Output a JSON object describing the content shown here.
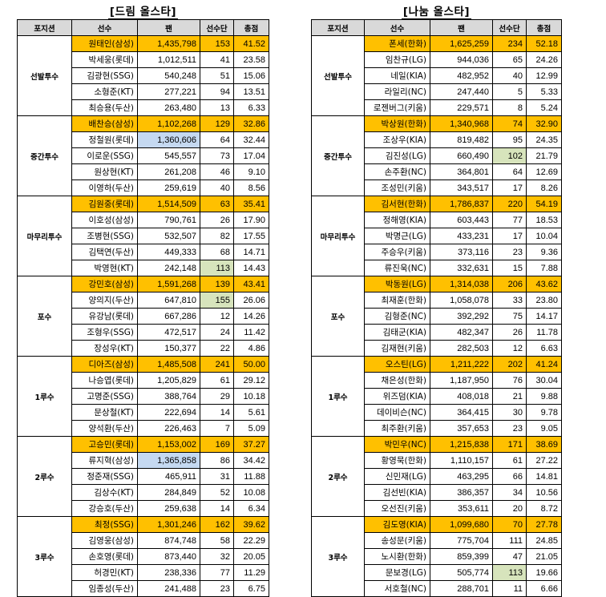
{
  "headers": [
    "포지션",
    "선수",
    "팬",
    "선수단",
    "총점"
  ],
  "tables": [
    {
      "title": "[드림 올스타]",
      "groups": [
        {
          "position": "선발투수",
          "rows": [
            {
              "name": "원태인(삼성)",
              "fan": "1,435,798",
              "players": "153",
              "total": "41.52",
              "top": true
            },
            {
              "name": "박세웅(롯데)",
              "fan": "1,012,511",
              "players": "41",
              "total": "23.58"
            },
            {
              "name": "김광현(SSG)",
              "fan": "540,248",
              "players": "51",
              "total": "15.06"
            },
            {
              "name": "소형준(KT)",
              "fan": "277,221",
              "players": "94",
              "total": "13.51"
            },
            {
              "name": "최승용(두산)",
              "fan": "263,480",
              "players": "13",
              "total": "6.33"
            }
          ]
        },
        {
          "position": "중간투수",
          "rows": [
            {
              "name": "배찬승(삼성)",
              "fan": "1,102,268",
              "players": "129",
              "total": "32.86",
              "top": true
            },
            {
              "name": "정철원(롯데)",
              "fan": "1,360,606",
              "players": "64",
              "total": "32.44",
              "hl": "fan"
            },
            {
              "name": "이로운(SSG)",
              "fan": "545,557",
              "players": "73",
              "total": "17.04"
            },
            {
              "name": "원상현(KT)",
              "fan": "261,208",
              "players": "46",
              "total": "9.10"
            },
            {
              "name": "이영하(두산)",
              "fan": "259,619",
              "players": "40",
              "total": "8.56"
            }
          ]
        },
        {
          "position": "마무리투수",
          "rows": [
            {
              "name": "김원중(롯데)",
              "fan": "1,514,509",
              "players": "63",
              "total": "35.41",
              "top": true
            },
            {
              "name": "이호성(삼성)",
              "fan": "790,761",
              "players": "26",
              "total": "17.90"
            },
            {
              "name": "조병현(SSG)",
              "fan": "532,507",
              "players": "82",
              "total": "17.55"
            },
            {
              "name": "김택연(두산)",
              "fan": "449,333",
              "players": "68",
              "total": "14.71"
            },
            {
              "name": "박영현(KT)",
              "fan": "242,148",
              "players": "113",
              "total": "14.43",
              "hl": "players"
            }
          ]
        },
        {
          "position": "포수",
          "rows": [
            {
              "name": "강민호(삼성)",
              "fan": "1,591,268",
              "players": "139",
              "total": "43.41",
              "top": true
            },
            {
              "name": "양의지(두산)",
              "fan": "647,810",
              "players": "155",
              "total": "26.06",
              "hl": "players"
            },
            {
              "name": "유강남(롯데)",
              "fan": "667,286",
              "players": "12",
              "total": "14.26"
            },
            {
              "name": "조형우(SSG)",
              "fan": "472,517",
              "players": "24",
              "total": "11.42"
            },
            {
              "name": "장성우(KT)",
              "fan": "150,377",
              "players": "22",
              "total": "4.86"
            }
          ]
        },
        {
          "position": "1루수",
          "rows": [
            {
              "name": "디아즈(삼성)",
              "fan": "1,485,508",
              "players": "241",
              "total": "50.00",
              "top": true
            },
            {
              "name": "나승엽(롯데)",
              "fan": "1,205,829",
              "players": "61",
              "total": "29.12"
            },
            {
              "name": "고명준(SSG)",
              "fan": "388,764",
              "players": "29",
              "total": "10.18"
            },
            {
              "name": "문상철(KT)",
              "fan": "222,694",
              "players": "14",
              "total": "5.61"
            },
            {
              "name": "양석환(두산)",
              "fan": "226,463",
              "players": "7",
              "total": "5.09"
            }
          ]
        },
        {
          "position": "2루수",
          "rows": [
            {
              "name": "고승민(롯데)",
              "fan": "1,153,002",
              "players": "169",
              "total": "37.27",
              "top": true
            },
            {
              "name": "류지혁(삼성)",
              "fan": "1,365,858",
              "players": "86",
              "total": "34.42",
              "hl": "fan"
            },
            {
              "name": "정준재(SSG)",
              "fan": "465,911",
              "players": "31",
              "total": "11.88"
            },
            {
              "name": "김상수(KT)",
              "fan": "284,849",
              "players": "52",
              "total": "10.08"
            },
            {
              "name": "강승호(두산)",
              "fan": "259,638",
              "players": "14",
              "total": "6.34"
            }
          ]
        },
        {
          "position": "3루수",
          "rows": [
            {
              "name": "최정(SSG)",
              "fan": "1,301,246",
              "players": "162",
              "total": "39.62",
              "top": true
            },
            {
              "name": "김영웅(삼성)",
              "fan": "874,748",
              "players": "58",
              "total": "22.29"
            },
            {
              "name": "손호영(롯데)",
              "fan": "873,440",
              "players": "32",
              "total": "20.05"
            },
            {
              "name": "허경민(KT)",
              "fan": "238,336",
              "players": "77",
              "total": "11.29"
            },
            {
              "name": "임종성(두산)",
              "fan": "241,488",
              "players": "23",
              "total": "6.75"
            }
          ]
        }
      ]
    },
    {
      "title": "[나눔 올스타]",
      "groups": [
        {
          "position": "선발투수",
          "rows": [
            {
              "name": "폰세(한화)",
              "fan": "1,625,259",
              "players": "234",
              "total": "52.18",
              "top": true
            },
            {
              "name": "임찬규(LG)",
              "fan": "944,036",
              "players": "65",
              "total": "24.26"
            },
            {
              "name": "네일(KIA)",
              "fan": "482,952",
              "players": "40",
              "total": "12.99"
            },
            {
              "name": "라일리(NC)",
              "fan": "247,440",
              "players": "5",
              "total": "5.33"
            },
            {
              "name": "로젠버그(키움)",
              "fan": "229,571",
              "players": "8",
              "total": "5.24"
            }
          ]
        },
        {
          "position": "중간투수",
          "rows": [
            {
              "name": "박상원(한화)",
              "fan": "1,340,968",
              "players": "74",
              "total": "32.90",
              "top": true
            },
            {
              "name": "조상우(KIA)",
              "fan": "819,482",
              "players": "95",
              "total": "24.35"
            },
            {
              "name": "김진성(LG)",
              "fan": "660,490",
              "players": "102",
              "total": "21.79",
              "hl": "players"
            },
            {
              "name": "손주환(NC)",
              "fan": "364,801",
              "players": "64",
              "total": "12.69"
            },
            {
              "name": "조성민(키움)",
              "fan": "343,517",
              "players": "17",
              "total": "8.26"
            }
          ]
        },
        {
          "position": "마무리투수",
          "rows": [
            {
              "name": "김서현(한화)",
              "fan": "1,786,837",
              "players": "220",
              "total": "54.19",
              "top": true
            },
            {
              "name": "정해영(KIA)",
              "fan": "603,443",
              "players": "77",
              "total": "18.53"
            },
            {
              "name": "박명근(LG)",
              "fan": "433,231",
              "players": "17",
              "total": "10.04"
            },
            {
              "name": "주승우(키움)",
              "fan": "373,116",
              "players": "23",
              "total": "9.36"
            },
            {
              "name": "류진욱(NC)",
              "fan": "332,631",
              "players": "15",
              "total": "7.88"
            }
          ]
        },
        {
          "position": "포수",
          "rows": [
            {
              "name": "박동원(LG)",
              "fan": "1,314,038",
              "players": "206",
              "total": "43.62",
              "top": true
            },
            {
              "name": "최재훈(한화)",
              "fan": "1,058,078",
              "players": "33",
              "total": "23.80"
            },
            {
              "name": "김형준(NC)",
              "fan": "392,292",
              "players": "75",
              "total": "14.17"
            },
            {
              "name": "김태군(KIA)",
              "fan": "482,347",
              "players": "26",
              "total": "11.78"
            },
            {
              "name": "김재현(키움)",
              "fan": "282,503",
              "players": "12",
              "total": "6.63"
            }
          ]
        },
        {
          "position": "1루수",
          "rows": [
            {
              "name": "오스틴(LG)",
              "fan": "1,211,222",
              "players": "202",
              "total": "41.24",
              "top": true
            },
            {
              "name": "채은성(한화)",
              "fan": "1,187,950",
              "players": "76",
              "total": "30.04"
            },
            {
              "name": "위즈덤(KIA)",
              "fan": "408,018",
              "players": "21",
              "total": "9.88"
            },
            {
              "name": "데이비슨(NC)",
              "fan": "364,415",
              "players": "30",
              "total": "9.78"
            },
            {
              "name": "최주환(키움)",
              "fan": "357,653",
              "players": "23",
              "total": "9.05"
            }
          ]
        },
        {
          "position": "2루수",
          "rows": [
            {
              "name": "박민우(NC)",
              "fan": "1,215,838",
              "players": "171",
              "total": "38.69",
              "top": true
            },
            {
              "name": "황영묵(한화)",
              "fan": "1,110,157",
              "players": "61",
              "total": "27.22"
            },
            {
              "name": "신민재(LG)",
              "fan": "463,295",
              "players": "66",
              "total": "14.81"
            },
            {
              "name": "김선빈(KIA)",
              "fan": "386,357",
              "players": "34",
              "total": "10.56"
            },
            {
              "name": "오선진(키움)",
              "fan": "353,611",
              "players": "20",
              "total": "8.72"
            }
          ]
        },
        {
          "position": "3루수",
          "rows": [
            {
              "name": "김도영(KIA)",
              "fan": "1,099,680",
              "players": "70",
              "total": "27.78",
              "top": true
            },
            {
              "name": "송성문(키움)",
              "fan": "775,704",
              "players": "111",
              "total": "24.85"
            },
            {
              "name": "노시환(한화)",
              "fan": "859,399",
              "players": "47",
              "total": "21.05"
            },
            {
              "name": "문보경(LG)",
              "fan": "505,774",
              "players": "113",
              "total": "19.66",
              "hl": "players"
            },
            {
              "name": "서호철(NC)",
              "fan": "288,701",
              "players": "11",
              "total": "6.66"
            }
          ]
        }
      ]
    }
  ]
}
